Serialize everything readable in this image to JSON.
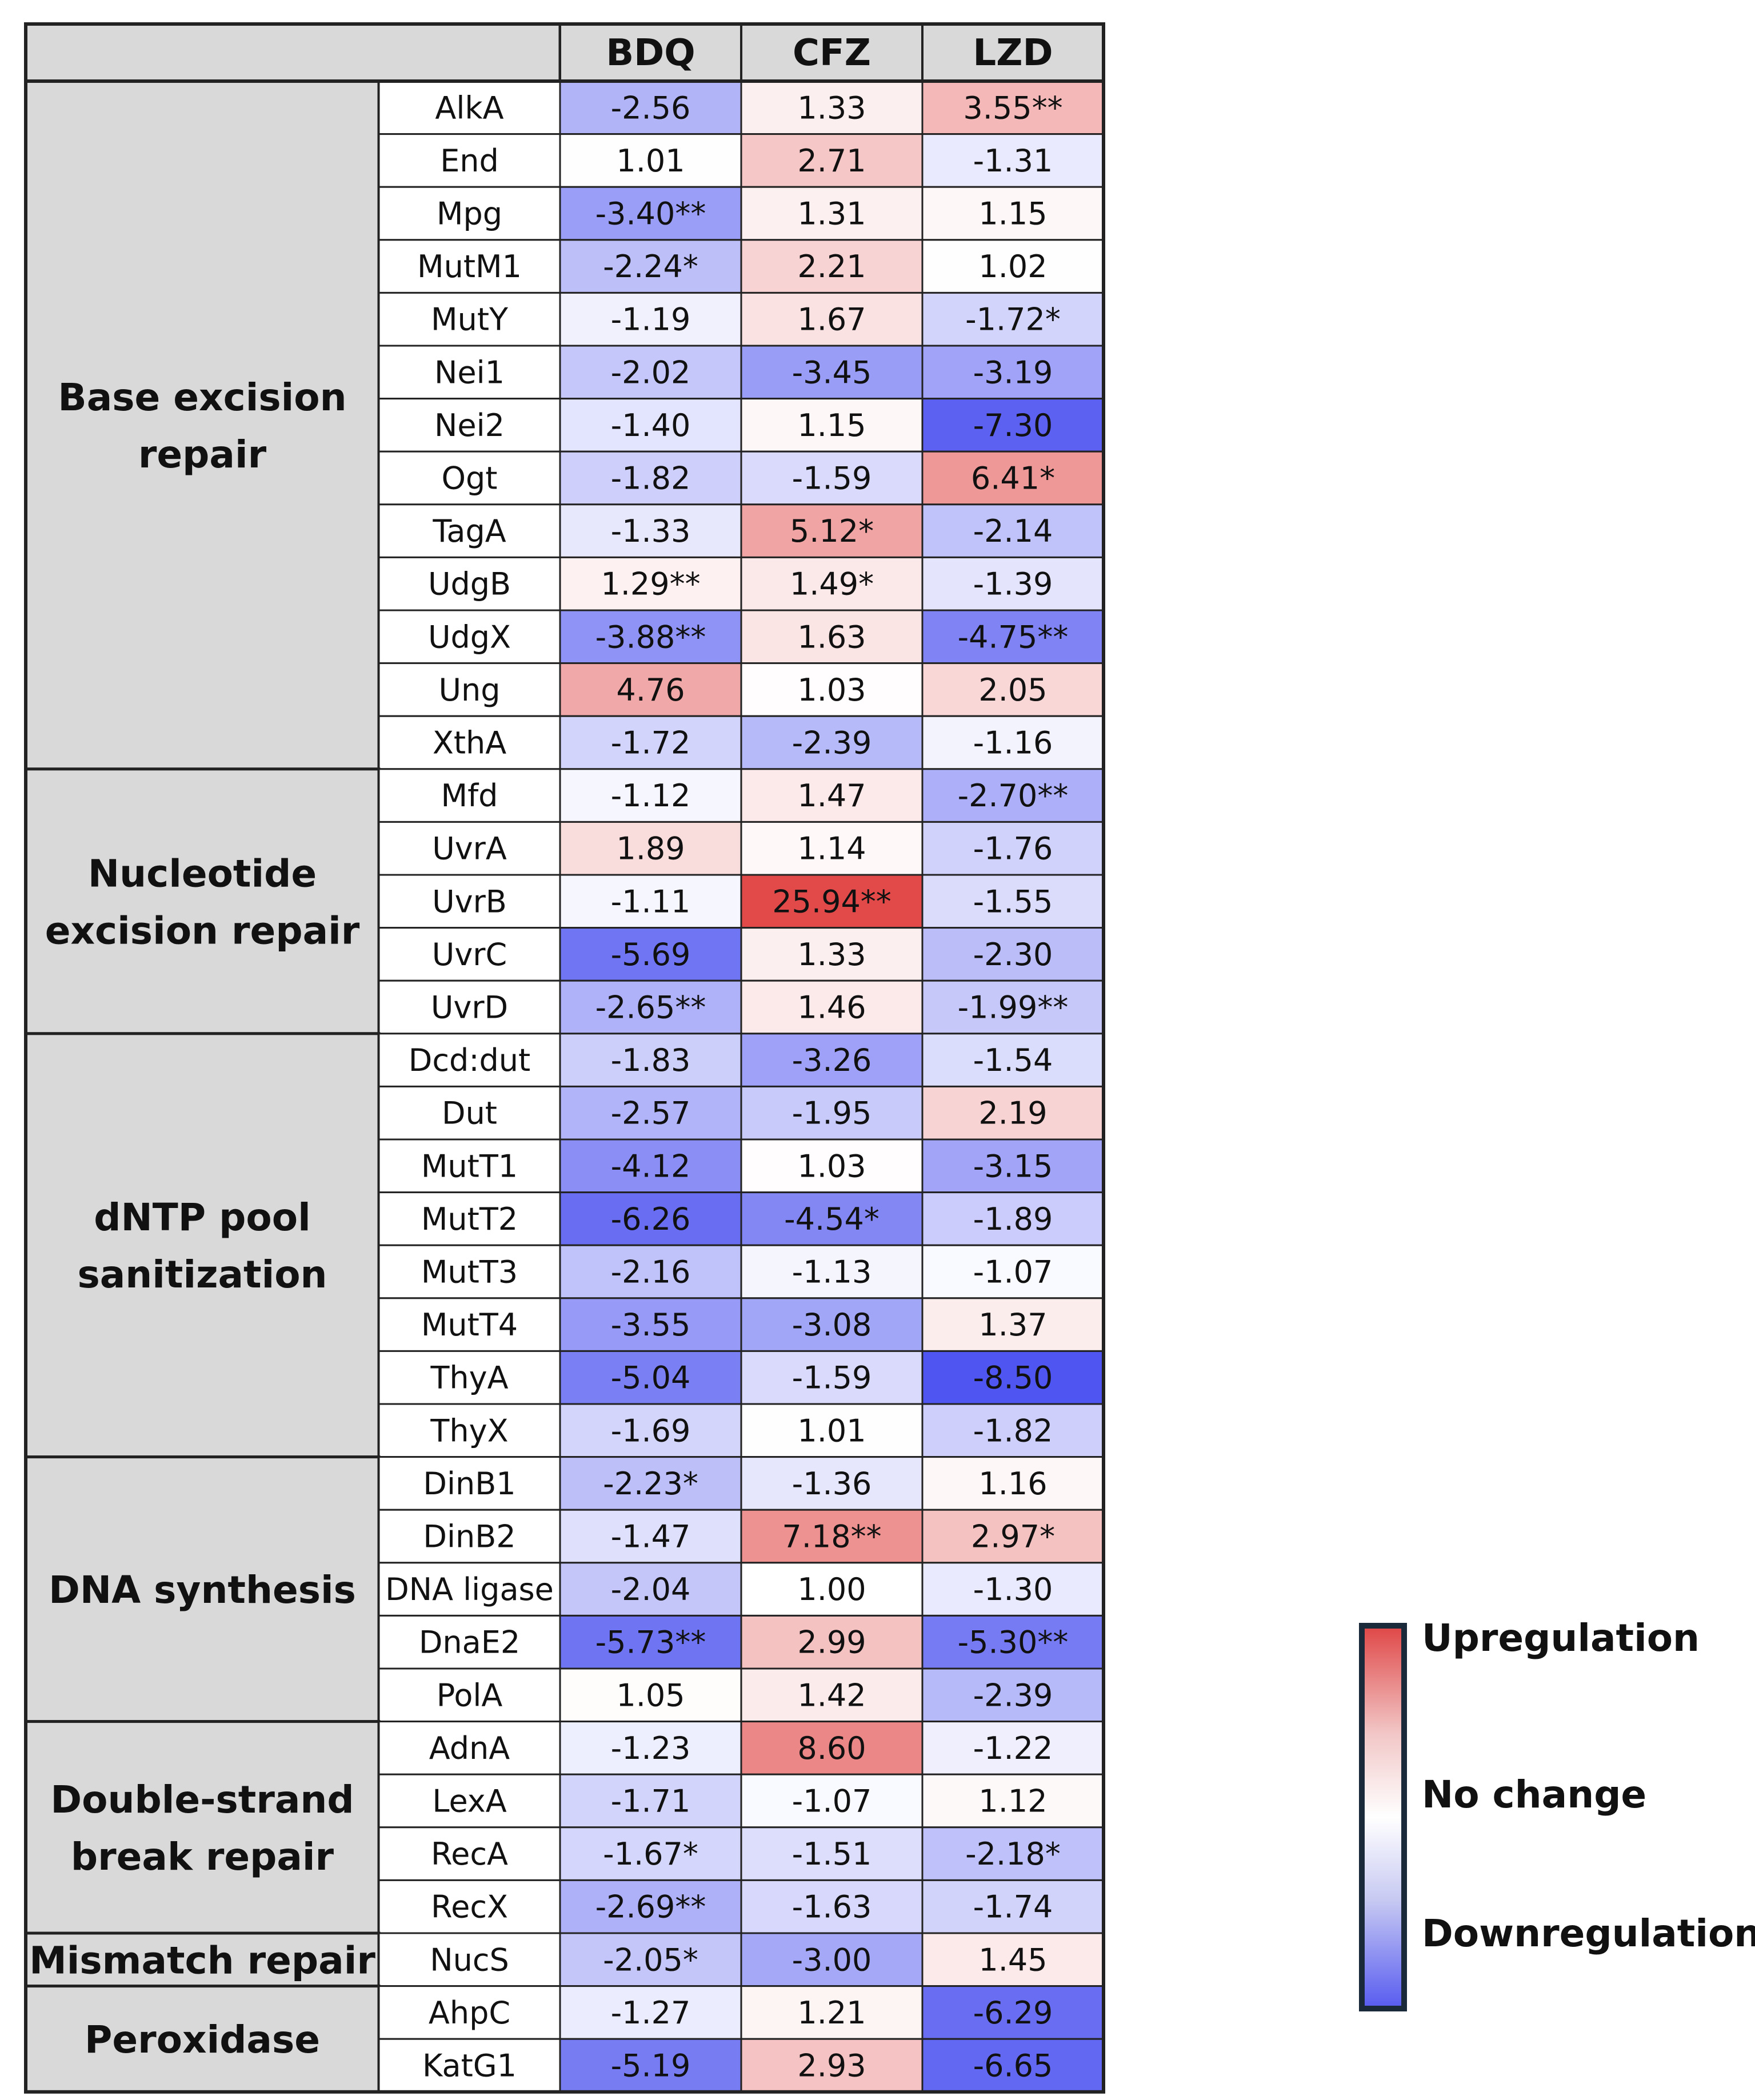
{
  "chart_data": {
    "type": "heatmap",
    "columns": [
      "BDQ",
      "CFZ",
      "LZD"
    ],
    "groups": [
      {
        "name": "Base excision repair",
        "lines": [
          "Base excision",
          "repair"
        ],
        "rows": [
          {
            "gene": "AlkA",
            "values": [
              "-2.56",
              "1.33",
              "3.55**"
            ]
          },
          {
            "gene": "End",
            "values": [
              "1.01",
              "2.71",
              "-1.31"
            ]
          },
          {
            "gene": "Mpg",
            "values": [
              "-3.40**",
              "1.31",
              "1.15"
            ]
          },
          {
            "gene": "MutM1",
            "values": [
              "-2.24*",
              "2.21",
              "1.02"
            ]
          },
          {
            "gene": "MutY",
            "values": [
              "-1.19",
              "1.67",
              "-1.72*"
            ]
          },
          {
            "gene": "Nei1",
            "values": [
              "-2.02",
              "-3.45",
              "-3.19"
            ]
          },
          {
            "gene": "Nei2",
            "values": [
              "-1.40",
              "1.15",
              "-7.30"
            ]
          },
          {
            "gene": "Ogt",
            "values": [
              "-1.82",
              "-1.59",
              "6.41*"
            ]
          },
          {
            "gene": "TagA",
            "values": [
              "-1.33",
              "5.12*",
              "-2.14"
            ]
          },
          {
            "gene": "UdgB",
            "values": [
              "1.29**",
              "1.49*",
              "-1.39"
            ]
          },
          {
            "gene": "UdgX",
            "values": [
              "-3.88**",
              "1.63",
              "-4.75**"
            ]
          },
          {
            "gene": "Ung",
            "values": [
              "4.76",
              "1.03",
              "2.05"
            ]
          },
          {
            "gene": "XthA",
            "values": [
              "-1.72",
              "-2.39",
              "-1.16"
            ]
          }
        ]
      },
      {
        "name": "Nucleotide excision repair",
        "lines": [
          "Nucleotide",
          "excision repair"
        ],
        "rows": [
          {
            "gene": "Mfd",
            "values": [
              "-1.12",
              "1.47",
              "-2.70**"
            ]
          },
          {
            "gene": "UvrA",
            "values": [
              "1.89",
              "1.14",
              "-1.76"
            ]
          },
          {
            "gene": "UvrB",
            "values": [
              "-1.11",
              "25.94**",
              "-1.55"
            ]
          },
          {
            "gene": "UvrC",
            "values": [
              "-5.69",
              "1.33",
              "-2.30"
            ]
          },
          {
            "gene": "UvrD",
            "values": [
              "-2.65**",
              "1.46",
              "-1.99**"
            ]
          }
        ]
      },
      {
        "name": "dNTP pool sanitization",
        "lines": [
          "dNTP pool",
          "sanitization"
        ],
        "rows": [
          {
            "gene": "Dcd:dut",
            "values": [
              "-1.83",
              "-3.26",
              "-1.54"
            ]
          },
          {
            "gene": "Dut",
            "values": [
              "-2.57",
              "-1.95",
              "2.19"
            ]
          },
          {
            "gene": "MutT1",
            "values": [
              "-4.12",
              "1.03",
              "-3.15"
            ]
          },
          {
            "gene": "MutT2",
            "values": [
              "-6.26",
              "-4.54*",
              "-1.89"
            ]
          },
          {
            "gene": "MutT3",
            "values": [
              "-2.16",
              "-1.13",
              "-1.07"
            ]
          },
          {
            "gene": "MutT4",
            "values": [
              "-3.55",
              "-3.08",
              "1.37"
            ]
          },
          {
            "gene": "ThyA",
            "values": [
              "-5.04",
              "-1.59",
              "-8.50"
            ]
          },
          {
            "gene": "ThyX",
            "values": [
              "-1.69",
              "1.01",
              "-1.82"
            ]
          }
        ]
      },
      {
        "name": "DNA synthesis",
        "lines": [
          "DNA synthesis"
        ],
        "rows": [
          {
            "gene": "DinB1",
            "values": [
              "-2.23*",
              "-1.36",
              "1.16"
            ]
          },
          {
            "gene": "DinB2",
            "values": [
              "-1.47",
              "7.18**",
              "2.97*"
            ]
          },
          {
            "gene": "DNA ligase",
            "values": [
              "-2.04",
              "1.00",
              "-1.30"
            ]
          },
          {
            "gene": "DnaE2",
            "values": [
              "-5.73**",
              "2.99",
              "-5.30**"
            ]
          },
          {
            "gene": "PolA",
            "values": [
              "1.05",
              "1.42",
              "-2.39"
            ]
          }
        ]
      },
      {
        "name": "Double-strand break repair",
        "lines": [
          "Double-strand",
          "break repair"
        ],
        "rows": [
          {
            "gene": "AdnA",
            "values": [
              "-1.23",
              "8.60",
              "-1.22"
            ]
          },
          {
            "gene": "LexA",
            "values": [
              "-1.71",
              "-1.07",
              "1.12"
            ]
          },
          {
            "gene": "RecA",
            "values": [
              "-1.67*",
              "-1.51",
              "-2.18*"
            ]
          },
          {
            "gene": "RecX",
            "values": [
              "-2.69**",
              "-1.63",
              "-1.74"
            ]
          }
        ]
      },
      {
        "name": "Mismatch repair",
        "lines": [
          "Mismatch repair"
        ],
        "rows": [
          {
            "gene": "NucS",
            "values": [
              "-2.05*",
              "-3.00",
              "1.45"
            ]
          }
        ]
      },
      {
        "name": "Peroxidase",
        "lines": [
          "Peroxidase"
        ],
        "rows": [
          {
            "gene": "AhpC",
            "values": [
              "-1.27",
              "1.21",
              "-6.29"
            ]
          },
          {
            "gene": "KatG1",
            "values": [
              "-5.19",
              "2.93",
              "-6.65"
            ]
          }
        ]
      }
    ],
    "legend": {
      "high": "Upregulation",
      "mid": "No change",
      "low": "Downregulation"
    },
    "colors": {
      "up": "#e04040",
      "none": "#ffffff",
      "down": "#4f55f0",
      "group_bg": "#d9d9d9",
      "border": "#222222"
    }
  }
}
